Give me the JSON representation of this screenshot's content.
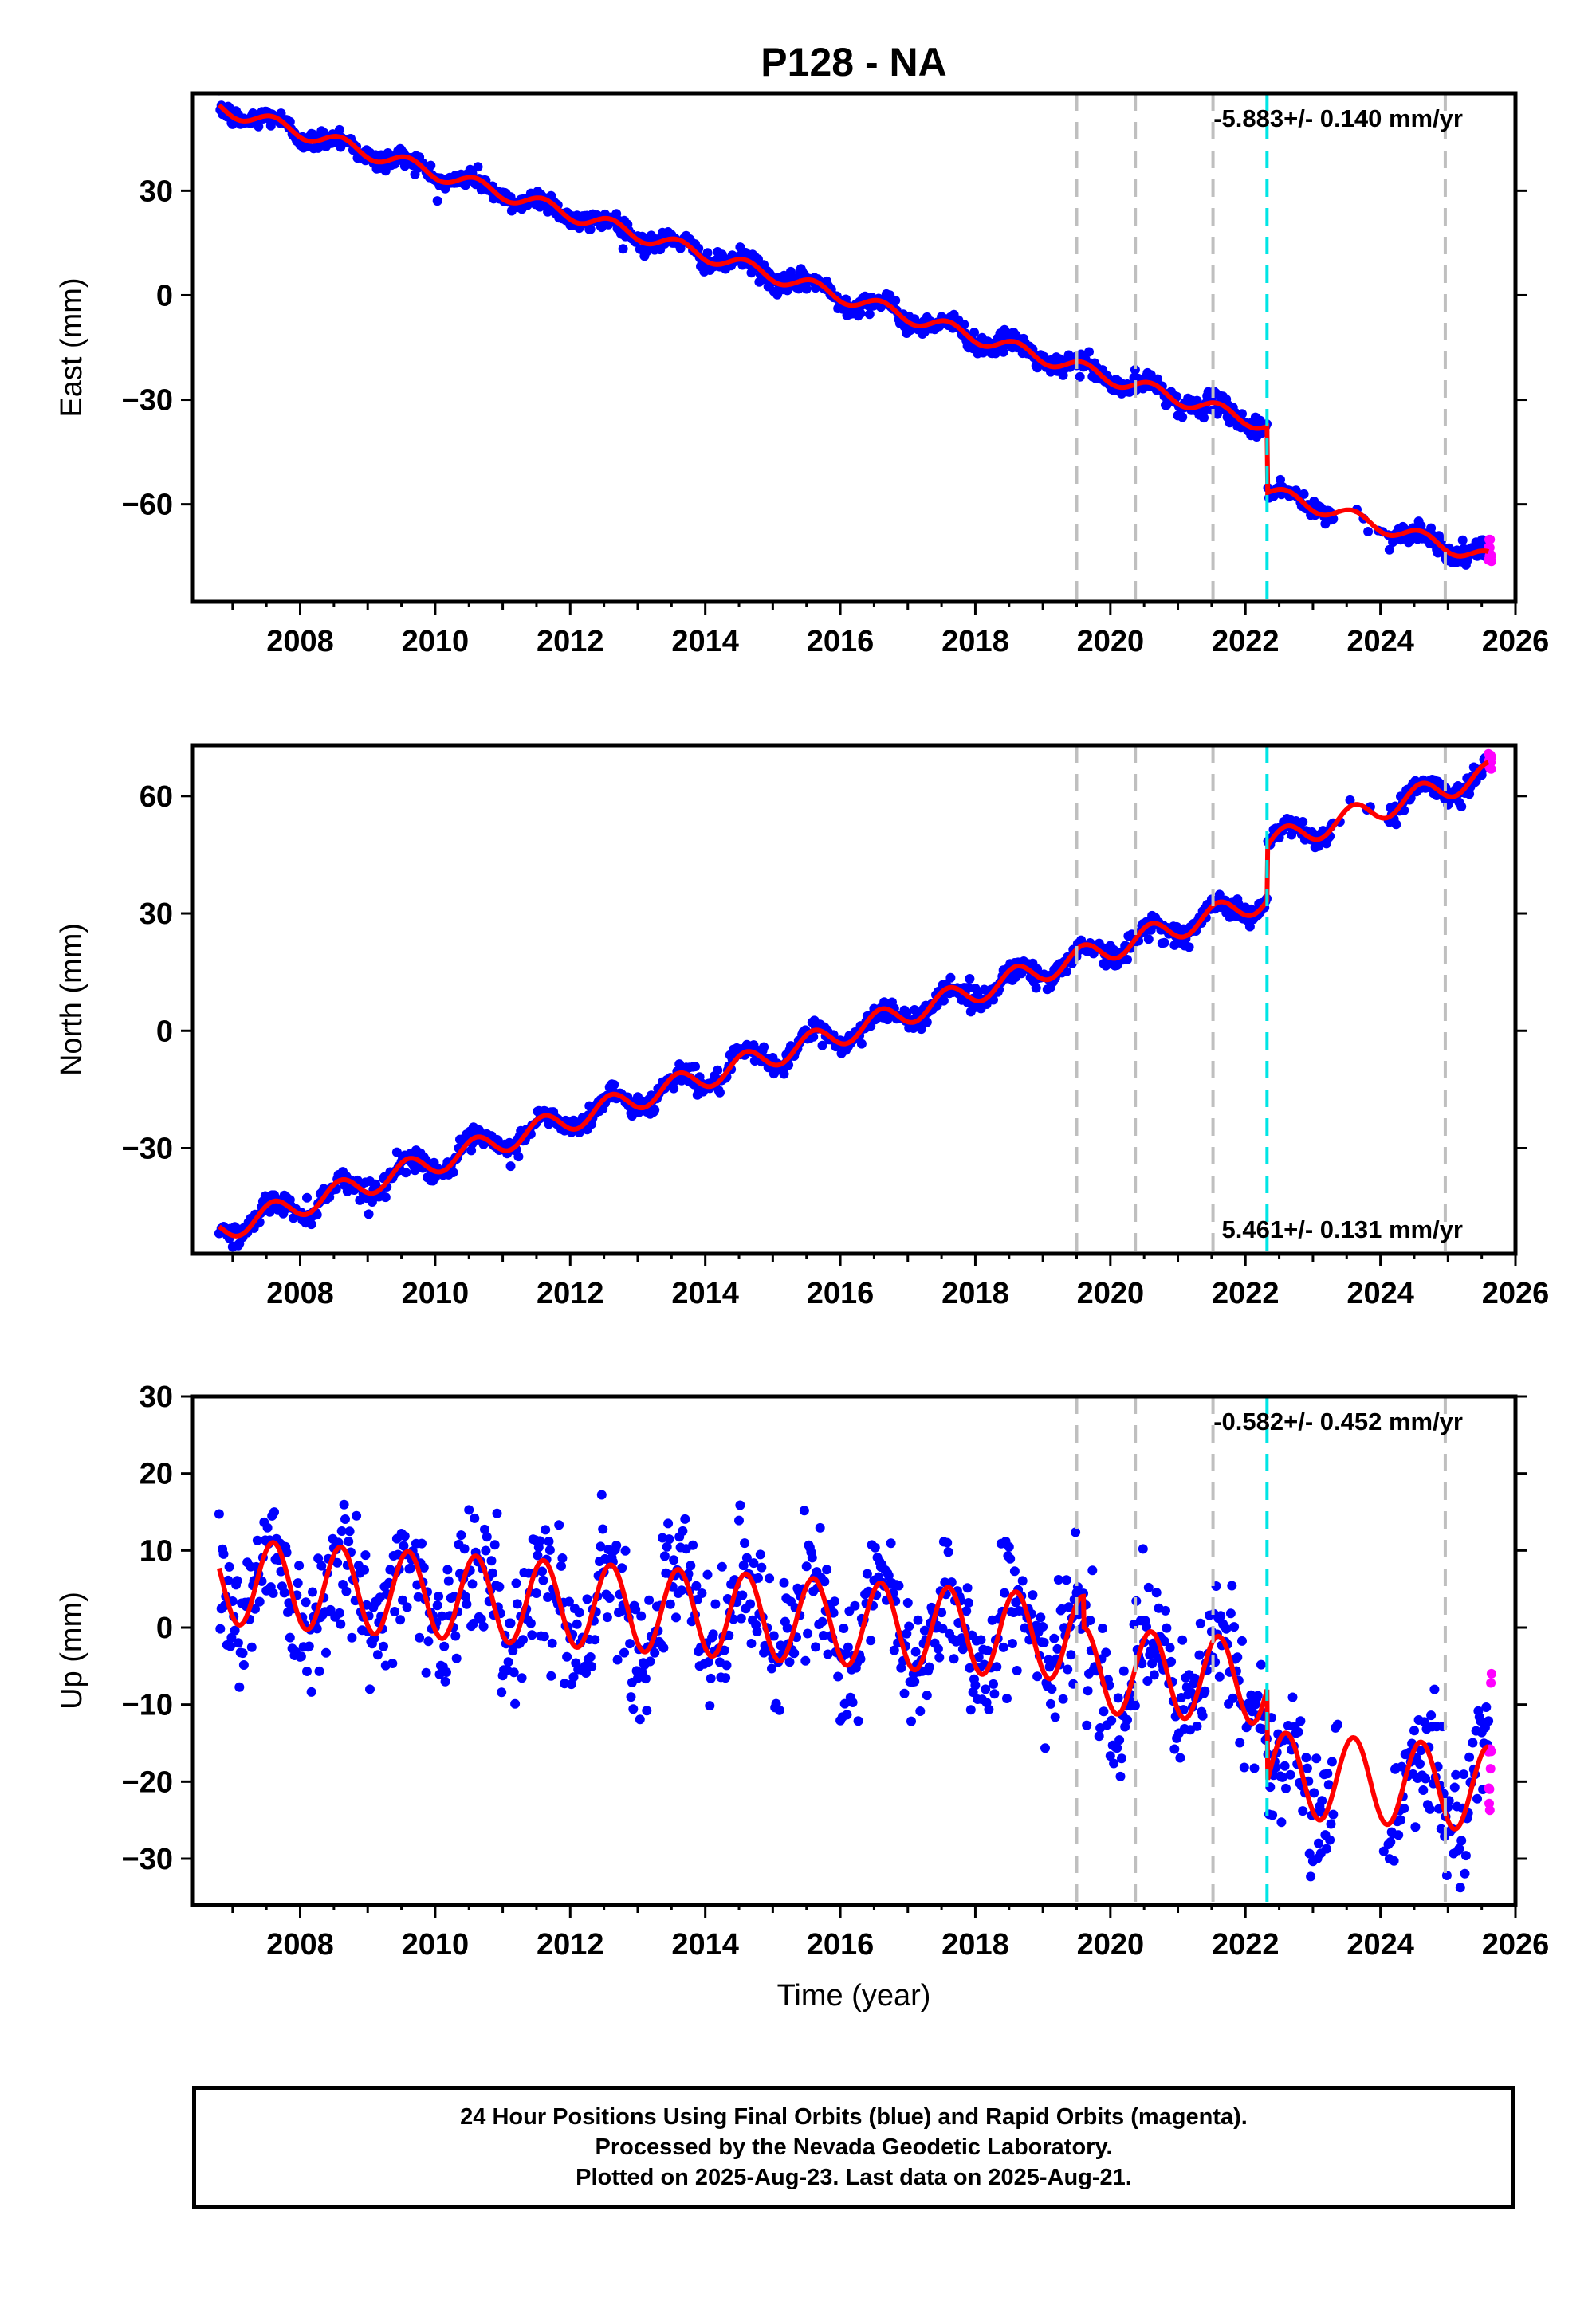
{
  "title": "P128 - NA",
  "colors": {
    "final_orbits": "#0000ff",
    "rapid_orbits": "#ff00ff",
    "model": "#ff0000",
    "event_line_gray": "#bfbfbf",
    "event_line_cyan": "#00e5e5"
  },
  "x_axis": {
    "label": "Time (year)",
    "xlim": [
      2006.4,
      2026.0
    ],
    "ticks": [
      2008,
      2010,
      2012,
      2014,
      2016,
      2018,
      2020,
      2022,
      2024,
      2026
    ]
  },
  "event_lines": [
    {
      "year": 2019.5,
      "color": "gray"
    },
    {
      "year": 2020.37,
      "color": "gray"
    },
    {
      "year": 2021.52,
      "color": "gray"
    },
    {
      "year": 2022.32,
      "color": "cyan"
    },
    {
      "year": 2024.96,
      "color": "gray"
    }
  ],
  "chart_data": [
    {
      "type": "scatter",
      "panel": "east",
      "ylabel": "East (mm)",
      "ylim": [
        -88,
        58
      ],
      "yticks": [
        30,
        0,
        -30,
        -60
      ],
      "rate_label": "-5.883+/- 0.140 mm/yr",
      "rate_position": "top-right",
      "trend": {
        "start_year": 2006.8,
        "start_value": 54,
        "rate_mm_per_yr": -5.883
      },
      "seasonal_amplitude": 2.0,
      "offsets": [
        {
          "year": 2022.32,
          "value": -19
        }
      ],
      "noise": 1.5,
      "end_year": 2025.6,
      "series": [
        {
          "name": "Final Orbits",
          "color": "blue"
        },
        {
          "name": "Rapid Orbits",
          "color": "magenta"
        },
        {
          "name": "Model",
          "color": "red"
        }
      ]
    },
    {
      "type": "scatter",
      "panel": "north",
      "ylabel": "North (mm)",
      "ylim": [
        -57,
        73
      ],
      "yticks": [
        60,
        30,
        0,
        -30
      ],
      "rate_label": "5.461+/- 0.131 mm/yr",
      "rate_position": "bottom-right",
      "trend": {
        "start_year": 2006.8,
        "start_value": -51,
        "rate_mm_per_yr": 5.461
      },
      "seasonal_amplitude": 3.0,
      "offsets": [
        {
          "year": 2022.32,
          "value": 14
        }
      ],
      "noise": 1.4,
      "end_year": 2025.6,
      "series": [
        {
          "name": "Final Orbits",
          "color": "blue"
        },
        {
          "name": "Rapid Orbits",
          "color": "magenta"
        },
        {
          "name": "Model",
          "color": "red"
        }
      ]
    },
    {
      "type": "scatter",
      "panel": "up",
      "ylabel": "Up (mm)",
      "ylim": [
        -36,
        30
      ],
      "yticks": [
        30,
        20,
        10,
        0,
        -10,
        -20,
        -30
      ],
      "rate_label": "-0.582+/- 0.452 mm/yr",
      "rate_position": "top-right",
      "trend": {
        "start_year": 2006.8,
        "start_value": 6,
        "rate_mm_per_yr": -0.582
      },
      "seasonal_amplitude": 5.5,
      "offsets": [
        {
          "year": 2019.6,
          "value": -4
        },
        {
          "year": 2022.32,
          "value": -12
        }
      ],
      "noise": 4.2,
      "end_year": 2025.6,
      "series": [
        {
          "name": "Final Orbits",
          "color": "blue"
        },
        {
          "name": "Rapid Orbits",
          "color": "magenta"
        },
        {
          "name": "Model",
          "color": "red"
        }
      ]
    }
  ],
  "footer": {
    "line1": "24 Hour Positions Using Final Orbits (blue) and Rapid Orbits (magenta).",
    "line2": "Processed by the Nevada Geodetic Laboratory.",
    "line3": "Plotted on 2025-Aug-23. Last data on 2025-Aug-21."
  }
}
